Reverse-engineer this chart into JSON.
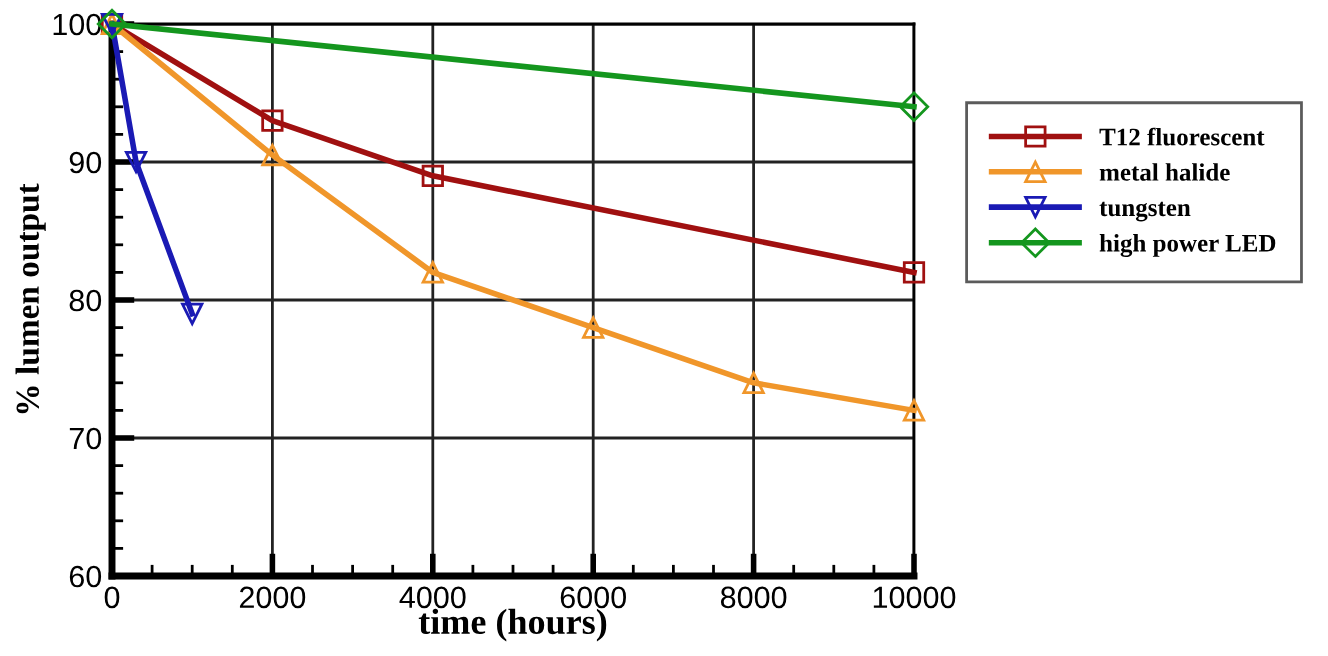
{
  "chart_data": {
    "type": "line",
    "xlabel": "time (hours)",
    "ylabel": "% lumen output",
    "xlim": [
      0,
      10000
    ],
    "ylim": [
      60,
      100
    ],
    "xticks": [
      0,
      2000,
      4000,
      6000,
      8000,
      10000
    ],
    "yticks": [
      60,
      70,
      80,
      90,
      100
    ],
    "grid": true,
    "legend": "right",
    "series": [
      {
        "name": "T12 fluorescent",
        "color": "#a01010",
        "marker": "square",
        "x": [
          0,
          2000,
          4000,
          10000
        ],
        "values": [
          100,
          93,
          89,
          82
        ]
      },
      {
        "name": "metal halide",
        "color": "#f0962a",
        "marker": "triangle",
        "x": [
          0,
          2000,
          4000,
          6000,
          8000,
          10000
        ],
        "values": [
          100,
          90.5,
          82,
          78,
          74,
          72
        ]
      },
      {
        "name": "tungsten",
        "color": "#1a1ab4",
        "marker": "triangle_down",
        "x": [
          0,
          300,
          1000
        ],
        "values": [
          100,
          90,
          79
        ]
      },
      {
        "name": "high power LED",
        "color": "#14961e",
        "marker": "diamond",
        "x": [
          0,
          10000
        ],
        "values": [
          100,
          94
        ]
      }
    ]
  }
}
